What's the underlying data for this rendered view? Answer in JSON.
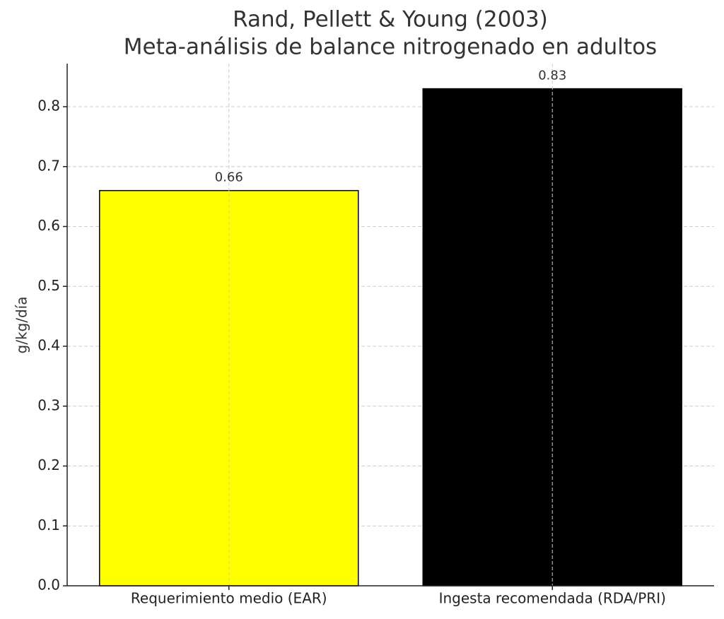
{
  "chart_data": {
    "type": "bar",
    "title": "Rand, Pellett & Young (2003)",
    "subtitle": "Meta-análisis de balance nitrogenado en adultos",
    "ylabel": "g/kg/día",
    "categories": [
      "Requerimiento medio (EAR)",
      "Ingesta recomendada (RDA/PRI)"
    ],
    "values": [
      0.66,
      0.83
    ],
    "colors": [
      "#ffff00",
      "#000000"
    ],
    "ylim": [
      0,
      0.872
    ],
    "yticks": [
      {
        "value": 0,
        "label": "0.0"
      },
      0.1,
      0.2,
      0.3,
      0.4,
      0.5,
      0.6,
      0.7,
      0.8
    ],
    "grid": true
  }
}
